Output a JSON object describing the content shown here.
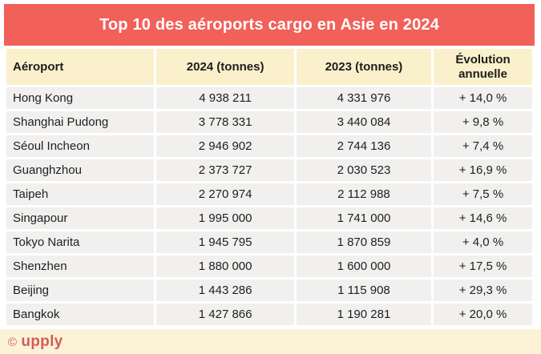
{
  "title": "Top 10 des aéroports cargo en Asie en 2024",
  "colors": {
    "banner": "#f2605a",
    "title_text": "#ffffff",
    "header_bg": "#faf0cb",
    "row_bg": "#f1f0ef",
    "footer_bg": "#fcf2d8",
    "logo": "#d55c54",
    "text": "#1e1e1e"
  },
  "table": {
    "columns": [
      "Aéroport",
      "2024 (tonnes)",
      "2023 (tonnes)",
      "Évolution annuelle"
    ],
    "rows": [
      {
        "airport": "Hong Kong",
        "t2024": "4 938 211",
        "t2023": "4 331 976",
        "evolution": "+ 14,0 %"
      },
      {
        "airport": "Shanghai Pudong",
        "t2024": "3 778 331",
        "t2023": "3 440 084",
        "evolution": "+ 9,8 %"
      },
      {
        "airport": "Séoul Incheon",
        "t2024": "2 946 902",
        "t2023": "2 744 136",
        "evolution": "+ 7,4 %"
      },
      {
        "airport": "Guanghzhou",
        "t2024": "2 373 727",
        "t2023": "2 030 523",
        "evolution": "+ 16,9 %"
      },
      {
        "airport": "Taipeh",
        "t2024": "2 270 974",
        "t2023": "2 112 988",
        "evolution": "+ 7,5 %"
      },
      {
        "airport": "Singapour",
        "t2024": "1 995 000",
        "t2023": "1 741 000",
        "evolution": "+ 14,6 %"
      },
      {
        "airport": "Tokyo Narita",
        "t2024": "1 945 795",
        "t2023": "1 870 859",
        "evolution": "+ 4,0 %"
      },
      {
        "airport": "Shenzhen",
        "t2024": "1 880 000",
        "t2023": "1 600 000",
        "evolution": "+ 17,5 %"
      },
      {
        "airport": "Beijing",
        "t2024": "1 443 286",
        "t2023": "1 115 908",
        "evolution": "+ 29,3 %"
      },
      {
        "airport": "Bangkok",
        "t2024": "1 427 866",
        "t2023": "1 190 281",
        "evolution": "+ 20,0 %"
      }
    ]
  },
  "footer": {
    "copyright": "©",
    "brand": "upply"
  },
  "chart_data": {
    "type": "table",
    "title": "Top 10 des aéroports cargo en Asie en 2024",
    "columns": [
      "Aéroport",
      "2024 (tonnes)",
      "2023 (tonnes)",
      "Évolution annuelle"
    ],
    "rows": [
      [
        "Hong Kong",
        4938211,
        4331976,
        "+14,0 %"
      ],
      [
        "Shanghai Pudong",
        3778331,
        3440084,
        "+9,8 %"
      ],
      [
        "Séoul Incheon",
        2946902,
        2744136,
        "+7,4 %"
      ],
      [
        "Guanghzhou",
        2373727,
        2030523,
        "+16,9 %"
      ],
      [
        "Taipeh",
        2270974,
        2112988,
        "+7,5 %"
      ],
      [
        "Singapour",
        1995000,
        1741000,
        "+14,6 %"
      ],
      [
        "Tokyo Narita",
        1945795,
        1870859,
        "+4,0 %"
      ],
      [
        "Shenzhen",
        1880000,
        1600000,
        "+17,5 %"
      ],
      [
        "Beijing",
        1443286,
        1115908,
        "+29,3 %"
      ],
      [
        "Bangkok",
        1427866,
        1190281,
        "+20,0 %"
      ]
    ]
  }
}
